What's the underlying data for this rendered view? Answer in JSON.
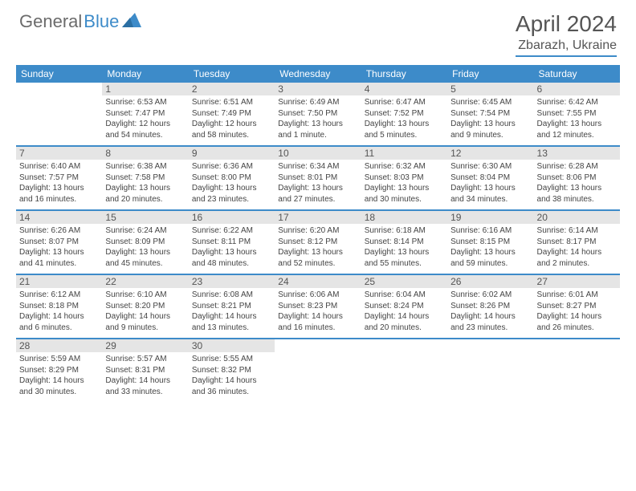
{
  "logo": {
    "part1": "General",
    "part2": "Blue"
  },
  "title": "April 2024",
  "location": "Zbarazh, Ukraine",
  "colors": {
    "accent": "#3d8bc9",
    "header_text": "#ffffff",
    "daynum_bg": "#e5e5e5",
    "text": "#555555",
    "info_text": "#444444",
    "background": "#ffffff"
  },
  "days": [
    "Sunday",
    "Monday",
    "Tuesday",
    "Wednesday",
    "Thursday",
    "Friday",
    "Saturday"
  ],
  "weeks": [
    [
      {
        "n": "",
        "sr": "",
        "ss": "",
        "dl": ""
      },
      {
        "n": "1",
        "sr": "Sunrise: 6:53 AM",
        "ss": "Sunset: 7:47 PM",
        "dl": "Daylight: 12 hours and 54 minutes."
      },
      {
        "n": "2",
        "sr": "Sunrise: 6:51 AM",
        "ss": "Sunset: 7:49 PM",
        "dl": "Daylight: 12 hours and 58 minutes."
      },
      {
        "n": "3",
        "sr": "Sunrise: 6:49 AM",
        "ss": "Sunset: 7:50 PM",
        "dl": "Daylight: 13 hours and 1 minute."
      },
      {
        "n": "4",
        "sr": "Sunrise: 6:47 AM",
        "ss": "Sunset: 7:52 PM",
        "dl": "Daylight: 13 hours and 5 minutes."
      },
      {
        "n": "5",
        "sr": "Sunrise: 6:45 AM",
        "ss": "Sunset: 7:54 PM",
        "dl": "Daylight: 13 hours and 9 minutes."
      },
      {
        "n": "6",
        "sr": "Sunrise: 6:42 AM",
        "ss": "Sunset: 7:55 PM",
        "dl": "Daylight: 13 hours and 12 minutes."
      }
    ],
    [
      {
        "n": "7",
        "sr": "Sunrise: 6:40 AM",
        "ss": "Sunset: 7:57 PM",
        "dl": "Daylight: 13 hours and 16 minutes."
      },
      {
        "n": "8",
        "sr": "Sunrise: 6:38 AM",
        "ss": "Sunset: 7:58 PM",
        "dl": "Daylight: 13 hours and 20 minutes."
      },
      {
        "n": "9",
        "sr": "Sunrise: 6:36 AM",
        "ss": "Sunset: 8:00 PM",
        "dl": "Daylight: 13 hours and 23 minutes."
      },
      {
        "n": "10",
        "sr": "Sunrise: 6:34 AM",
        "ss": "Sunset: 8:01 PM",
        "dl": "Daylight: 13 hours and 27 minutes."
      },
      {
        "n": "11",
        "sr": "Sunrise: 6:32 AM",
        "ss": "Sunset: 8:03 PM",
        "dl": "Daylight: 13 hours and 30 minutes."
      },
      {
        "n": "12",
        "sr": "Sunrise: 6:30 AM",
        "ss": "Sunset: 8:04 PM",
        "dl": "Daylight: 13 hours and 34 minutes."
      },
      {
        "n": "13",
        "sr": "Sunrise: 6:28 AM",
        "ss": "Sunset: 8:06 PM",
        "dl": "Daylight: 13 hours and 38 minutes."
      }
    ],
    [
      {
        "n": "14",
        "sr": "Sunrise: 6:26 AM",
        "ss": "Sunset: 8:07 PM",
        "dl": "Daylight: 13 hours and 41 minutes."
      },
      {
        "n": "15",
        "sr": "Sunrise: 6:24 AM",
        "ss": "Sunset: 8:09 PM",
        "dl": "Daylight: 13 hours and 45 minutes."
      },
      {
        "n": "16",
        "sr": "Sunrise: 6:22 AM",
        "ss": "Sunset: 8:11 PM",
        "dl": "Daylight: 13 hours and 48 minutes."
      },
      {
        "n": "17",
        "sr": "Sunrise: 6:20 AM",
        "ss": "Sunset: 8:12 PM",
        "dl": "Daylight: 13 hours and 52 minutes."
      },
      {
        "n": "18",
        "sr": "Sunrise: 6:18 AM",
        "ss": "Sunset: 8:14 PM",
        "dl": "Daylight: 13 hours and 55 minutes."
      },
      {
        "n": "19",
        "sr": "Sunrise: 6:16 AM",
        "ss": "Sunset: 8:15 PM",
        "dl": "Daylight: 13 hours and 59 minutes."
      },
      {
        "n": "20",
        "sr": "Sunrise: 6:14 AM",
        "ss": "Sunset: 8:17 PM",
        "dl": "Daylight: 14 hours and 2 minutes."
      }
    ],
    [
      {
        "n": "21",
        "sr": "Sunrise: 6:12 AM",
        "ss": "Sunset: 8:18 PM",
        "dl": "Daylight: 14 hours and 6 minutes."
      },
      {
        "n": "22",
        "sr": "Sunrise: 6:10 AM",
        "ss": "Sunset: 8:20 PM",
        "dl": "Daylight: 14 hours and 9 minutes."
      },
      {
        "n": "23",
        "sr": "Sunrise: 6:08 AM",
        "ss": "Sunset: 8:21 PM",
        "dl": "Daylight: 14 hours and 13 minutes."
      },
      {
        "n": "24",
        "sr": "Sunrise: 6:06 AM",
        "ss": "Sunset: 8:23 PM",
        "dl": "Daylight: 14 hours and 16 minutes."
      },
      {
        "n": "25",
        "sr": "Sunrise: 6:04 AM",
        "ss": "Sunset: 8:24 PM",
        "dl": "Daylight: 14 hours and 20 minutes."
      },
      {
        "n": "26",
        "sr": "Sunrise: 6:02 AM",
        "ss": "Sunset: 8:26 PM",
        "dl": "Daylight: 14 hours and 23 minutes."
      },
      {
        "n": "27",
        "sr": "Sunrise: 6:01 AM",
        "ss": "Sunset: 8:27 PM",
        "dl": "Daylight: 14 hours and 26 minutes."
      }
    ],
    [
      {
        "n": "28",
        "sr": "Sunrise: 5:59 AM",
        "ss": "Sunset: 8:29 PM",
        "dl": "Daylight: 14 hours and 30 minutes."
      },
      {
        "n": "29",
        "sr": "Sunrise: 5:57 AM",
        "ss": "Sunset: 8:31 PM",
        "dl": "Daylight: 14 hours and 33 minutes."
      },
      {
        "n": "30",
        "sr": "Sunrise: 5:55 AM",
        "ss": "Sunset: 8:32 PM",
        "dl": "Daylight: 14 hours and 36 minutes."
      },
      {
        "n": "",
        "sr": "",
        "ss": "",
        "dl": ""
      },
      {
        "n": "",
        "sr": "",
        "ss": "",
        "dl": ""
      },
      {
        "n": "",
        "sr": "",
        "ss": "",
        "dl": ""
      },
      {
        "n": "",
        "sr": "",
        "ss": "",
        "dl": ""
      }
    ]
  ]
}
